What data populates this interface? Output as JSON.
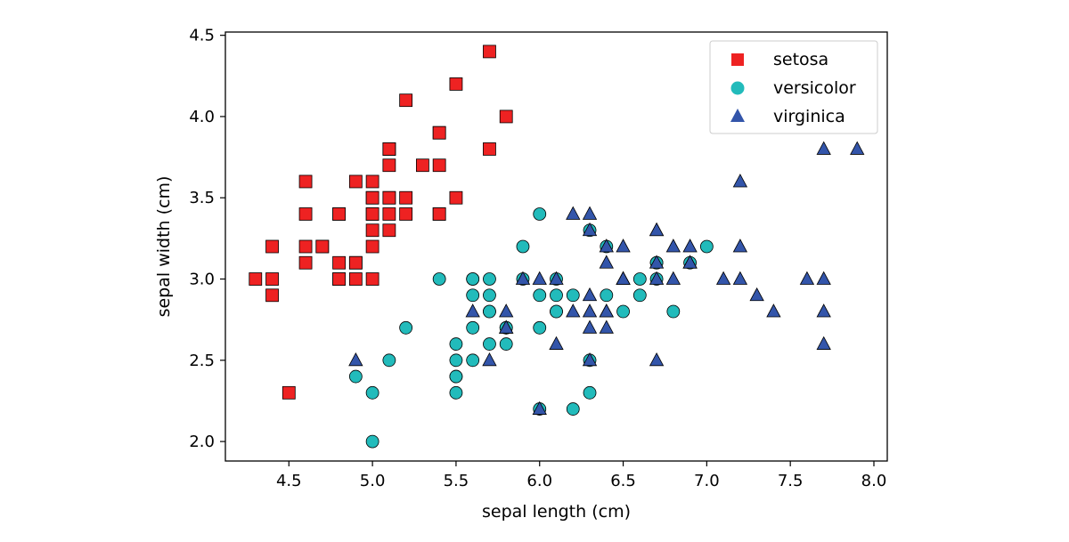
{
  "chart_data": {
    "type": "scatter",
    "title": "",
    "xlabel": "sepal length (cm)",
    "ylabel": "sepal width (cm)",
    "xlim": [
      4.12,
      8.08
    ],
    "ylim": [
      1.88,
      4.52
    ],
    "xticks": [
      "4.5",
      "5.0",
      "5.5",
      "6.0",
      "6.5",
      "7.0",
      "7.5",
      "8.0"
    ],
    "yticks": [
      "2.0",
      "2.5",
      "3.0",
      "3.5",
      "4.0",
      "4.5"
    ],
    "grid": false,
    "legend_position": "top-right",
    "series": [
      {
        "name": "setosa",
        "marker": "square",
        "color": "#ee2222",
        "points": [
          [
            5.1,
            3.5
          ],
          [
            4.9,
            3.0
          ],
          [
            4.7,
            3.2
          ],
          [
            4.6,
            3.1
          ],
          [
            5.0,
            3.6
          ],
          [
            5.4,
            3.9
          ],
          [
            4.6,
            3.4
          ],
          [
            5.0,
            3.4
          ],
          [
            4.4,
            2.9
          ],
          [
            4.9,
            3.1
          ],
          [
            5.4,
            3.7
          ],
          [
            4.8,
            3.4
          ],
          [
            4.8,
            3.0
          ],
          [
            4.3,
            3.0
          ],
          [
            5.8,
            4.0
          ],
          [
            5.7,
            4.4
          ],
          [
            5.4,
            3.9
          ],
          [
            5.1,
            3.5
          ],
          [
            5.7,
            3.8
          ],
          [
            5.1,
            3.8
          ],
          [
            5.4,
            3.4
          ],
          [
            5.1,
            3.7
          ],
          [
            4.6,
            3.6
          ],
          [
            5.1,
            3.3
          ],
          [
            4.8,
            3.4
          ],
          [
            5.0,
            3.0
          ],
          [
            5.0,
            3.4
          ],
          [
            5.2,
            3.5
          ],
          [
            5.2,
            3.4
          ],
          [
            4.7,
            3.2
          ],
          [
            4.8,
            3.1
          ],
          [
            5.4,
            3.4
          ],
          [
            5.2,
            4.1
          ],
          [
            5.5,
            4.2
          ],
          [
            4.9,
            3.1
          ],
          [
            5.0,
            3.2
          ],
          [
            5.5,
            3.5
          ],
          [
            4.9,
            3.6
          ],
          [
            4.4,
            3.0
          ],
          [
            5.1,
            3.4
          ],
          [
            5.0,
            3.5
          ],
          [
            4.5,
            2.3
          ],
          [
            4.4,
            3.2
          ],
          [
            5.0,
            3.5
          ],
          [
            5.1,
            3.8
          ],
          [
            4.8,
            3.0
          ],
          [
            5.1,
            3.8
          ],
          [
            4.6,
            3.2
          ],
          [
            5.3,
            3.7
          ],
          [
            5.0,
            3.3
          ]
        ]
      },
      {
        "name": "versicolor",
        "marker": "circle",
        "color": "#22bbbb",
        "points": [
          [
            7.0,
            3.2
          ],
          [
            6.4,
            3.2
          ],
          [
            6.9,
            3.1
          ],
          [
            5.5,
            2.3
          ],
          [
            6.5,
            2.8
          ],
          [
            5.7,
            2.8
          ],
          [
            6.3,
            3.3
          ],
          [
            4.9,
            2.4
          ],
          [
            6.6,
            2.9
          ],
          [
            5.2,
            2.7
          ],
          [
            5.0,
            2.0
          ],
          [
            5.9,
            3.0
          ],
          [
            6.0,
            2.2
          ],
          [
            6.1,
            2.9
          ],
          [
            5.6,
            2.9
          ],
          [
            6.7,
            3.1
          ],
          [
            5.6,
            3.0
          ],
          [
            5.8,
            2.7
          ],
          [
            6.2,
            2.2
          ],
          [
            5.6,
            2.5
          ],
          [
            5.9,
            3.2
          ],
          [
            6.1,
            2.8
          ],
          [
            6.3,
            2.5
          ],
          [
            6.1,
            2.8
          ],
          [
            6.4,
            2.9
          ],
          [
            6.6,
            3.0
          ],
          [
            6.8,
            2.8
          ],
          [
            6.7,
            3.0
          ],
          [
            6.0,
            2.9
          ],
          [
            5.7,
            2.6
          ],
          [
            5.5,
            2.4
          ],
          [
            5.5,
            2.4
          ],
          [
            5.8,
            2.7
          ],
          [
            6.0,
            2.7
          ],
          [
            5.4,
            3.0
          ],
          [
            6.0,
            3.4
          ],
          [
            6.7,
            3.1
          ],
          [
            6.3,
            2.3
          ],
          [
            5.6,
            3.0
          ],
          [
            5.5,
            2.5
          ],
          [
            5.5,
            2.6
          ],
          [
            6.1,
            3.0
          ],
          [
            5.8,
            2.6
          ],
          [
            5.0,
            2.3
          ],
          [
            5.6,
            2.7
          ],
          [
            5.7,
            3.0
          ],
          [
            5.7,
            2.9
          ],
          [
            6.2,
            2.9
          ],
          [
            5.1,
            2.5
          ],
          [
            5.7,
            2.8
          ]
        ]
      },
      {
        "name": "virginica",
        "marker": "triangle",
        "color": "#3355aa",
        "points": [
          [
            6.3,
            3.3
          ],
          [
            5.8,
            2.7
          ],
          [
            7.1,
            3.0
          ],
          [
            6.3,
            2.9
          ],
          [
            6.5,
            3.0
          ],
          [
            7.6,
            3.0
          ],
          [
            4.9,
            2.5
          ],
          [
            7.3,
            2.9
          ],
          [
            6.7,
            2.5
          ],
          [
            7.2,
            3.6
          ],
          [
            6.5,
            3.2
          ],
          [
            6.4,
            2.7
          ],
          [
            6.8,
            3.0
          ],
          [
            5.7,
            2.5
          ],
          [
            5.8,
            2.8
          ],
          [
            6.4,
            3.2
          ],
          [
            6.5,
            3.0
          ],
          [
            7.7,
            3.8
          ],
          [
            7.7,
            2.6
          ],
          [
            6.0,
            2.2
          ],
          [
            6.9,
            3.2
          ],
          [
            5.6,
            2.8
          ],
          [
            7.7,
            2.8
          ],
          [
            6.3,
            2.7
          ],
          [
            6.7,
            3.3
          ],
          [
            7.2,
            3.2
          ],
          [
            6.2,
            2.8
          ],
          [
            6.1,
            3.0
          ],
          [
            6.4,
            2.8
          ],
          [
            7.2,
            3.0
          ],
          [
            7.4,
            2.8
          ],
          [
            7.9,
            3.8
          ],
          [
            6.4,
            2.8
          ],
          [
            6.3,
            2.8
          ],
          [
            6.1,
            2.6
          ],
          [
            7.7,
            3.0
          ],
          [
            6.3,
            3.4
          ],
          [
            6.4,
            3.1
          ],
          [
            6.0,
            3.0
          ],
          [
            6.9,
            3.1
          ],
          [
            6.7,
            3.1
          ],
          [
            6.9,
            3.1
          ],
          [
            5.8,
            2.7
          ],
          [
            6.8,
            3.2
          ],
          [
            6.7,
            3.3
          ],
          [
            6.7,
            3.0
          ],
          [
            6.3,
            2.5
          ],
          [
            6.5,
            3.0
          ],
          [
            6.2,
            3.4
          ],
          [
            5.9,
            3.0
          ]
        ]
      }
    ]
  }
}
